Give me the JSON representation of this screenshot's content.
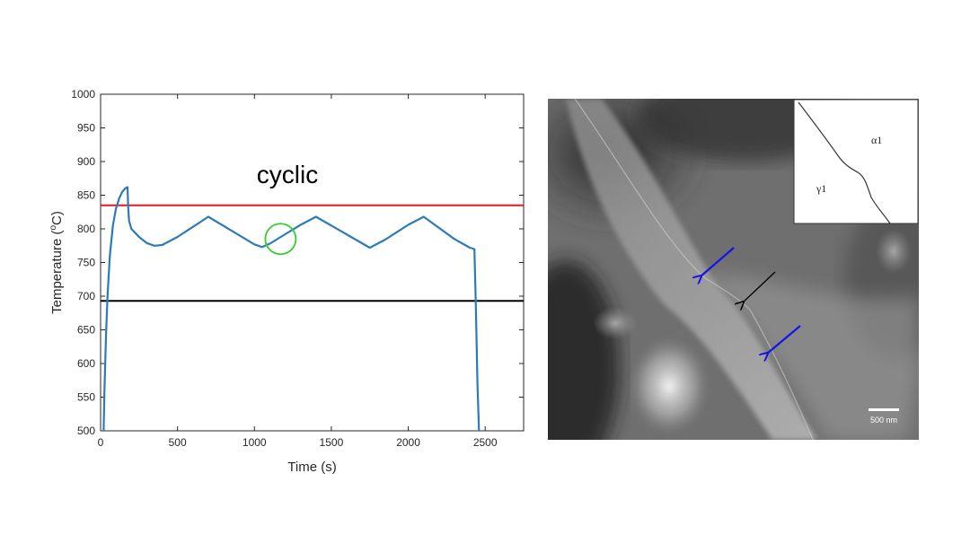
{
  "chart_data": {
    "type": "line",
    "title": "",
    "annotation": "cyclic",
    "xlabel": "Time (s)",
    "ylabel": "Temperature (°C)",
    "ylabel_parts": {
      "prefix": "Temperature (",
      "sup": "o",
      "suffix": "C)"
    },
    "xlim": [
      0,
      2750
    ],
    "ylim": [
      500,
      1000
    ],
    "xticks": [
      0,
      500,
      1000,
      1500,
      2000,
      2500
    ],
    "yticks": [
      500,
      550,
      600,
      650,
      700,
      750,
      800,
      850,
      900,
      950,
      1000
    ],
    "grid": false,
    "legend": "none",
    "series": [
      {
        "color": "#2c7bb6",
        "x": [
          20,
          25,
          35,
          45,
          60,
          80,
          100,
          120,
          140,
          160,
          175,
          180,
          185,
          200,
          250,
          300,
          350,
          400,
          500,
          600,
          700,
          1000,
          1050,
          1100,
          1200,
          1300,
          1400,
          1750,
          1850,
          2000,
          2100,
          2300,
          2400,
          2430,
          2440,
          2450,
          2460
        ],
        "y": [
          500,
          560,
          640,
          700,
          760,
          805,
          830,
          845,
          855,
          860,
          862,
          830,
          812,
          800,
          788,
          779,
          775,
          776,
          788,
          803,
          818,
          777,
          773,
          778,
          792,
          806,
          818,
          772,
          784,
          806,
          818,
          785,
          772,
          770,
          680,
          570,
          500
        ]
      }
    ],
    "reference_lines": [
      {
        "y": 835,
        "color": "#e41a1c"
      },
      {
        "y": 693,
        "color": "#000000"
      }
    ],
    "highlight_circle": {
      "x": 1170,
      "y": 785,
      "color": "#33cc33"
    }
  },
  "micrograph": {
    "scale_bar_label": "500 nm",
    "inset_phase_labels": [
      "α1",
      "γ1"
    ],
    "arrow_colors": {
      "blue": "#1414e6",
      "black": "#000000"
    }
  }
}
